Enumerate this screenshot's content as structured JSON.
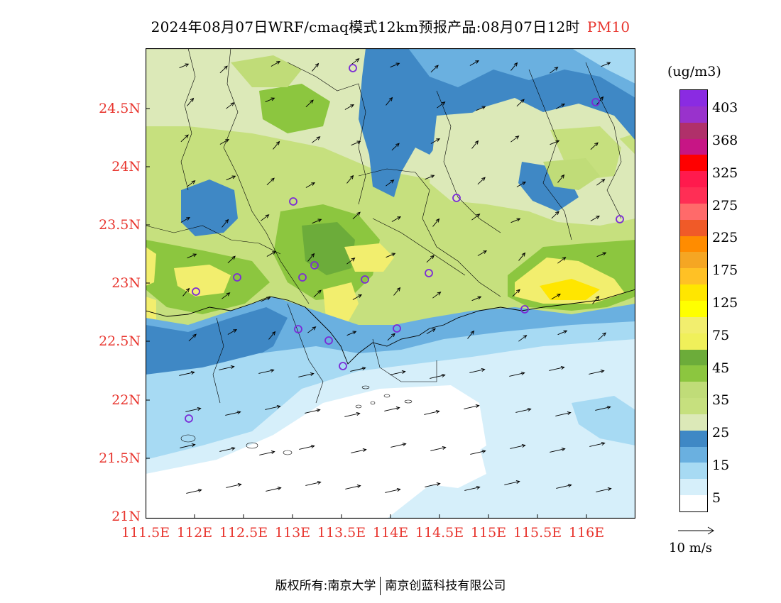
{
  "title": {
    "text": "2024年08月07日WRF/cmaq模式12km预报产品:08月07日12时",
    "pollutant": "PM10"
  },
  "map": {
    "lat_labels": [
      "24.5N",
      "24N",
      "23.5N",
      "23N",
      "22.5N",
      "22N",
      "21.5N",
      "21N"
    ],
    "lon_labels": [
      "111.5E",
      "112E",
      "112.5E",
      "113E",
      "113.5E",
      "114E",
      "114.5E",
      "115E",
      "115.5E",
      "116E"
    ],
    "lat_range": [
      21,
      25.0
    ],
    "lon_range": [
      111.5,
      116.5
    ],
    "wind_direction": "southwest",
    "station_marker_color": "#7b2bd6"
  },
  "colorbar": {
    "units": "(ug/m3)",
    "labels": [
      "403",
      "368",
      "325",
      "275",
      "225",
      "175",
      "125",
      "75",
      "45",
      "35",
      "25",
      "15",
      "5"
    ],
    "colors_top_to_bottom": [
      "#8a2be2",
      "#9932cc",
      "#b0306a",
      "#c71585",
      "#ff0000",
      "#ff1a4d",
      "#ff2e55",
      "#ff6a6a",
      "#f05a28",
      "#ff8c00",
      "#f5a623",
      "#ffc125",
      "#ffe600",
      "#ffff00",
      "#f2ee6e",
      "#f0f05a",
      "#6cac3a",
      "#8cc63f",
      "#c0dc78",
      "#c6e07e",
      "#dce9b8",
      "#3f88c5",
      "#6ab0e0",
      "#a7daf3",
      "#d6effa",
      "#ffffff"
    ]
  },
  "wind_reference": {
    "label": "10 m/s"
  },
  "footer": {
    "left": "版权所有:南京大学",
    "right": "南京创蓝科技有限公司"
  }
}
